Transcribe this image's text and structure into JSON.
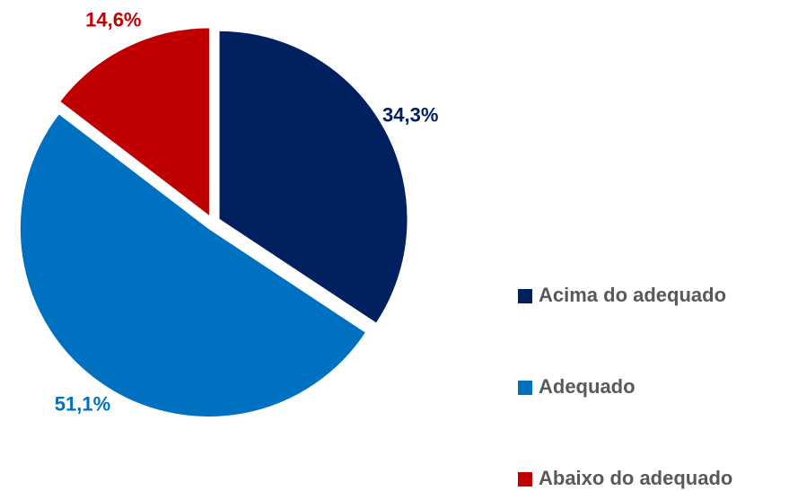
{
  "chart_data": {
    "type": "pie",
    "categories": [
      "Acima do adequado",
      "Adequado",
      "Abaixo do adequado"
    ],
    "values": [
      34.3,
      51.1,
      14.6
    ],
    "value_labels": [
      "34,3%",
      "51,1%",
      "14,6%"
    ],
    "colors": [
      "#002060",
      "#0070c0",
      "#c00000"
    ],
    "legend": "right"
  }
}
